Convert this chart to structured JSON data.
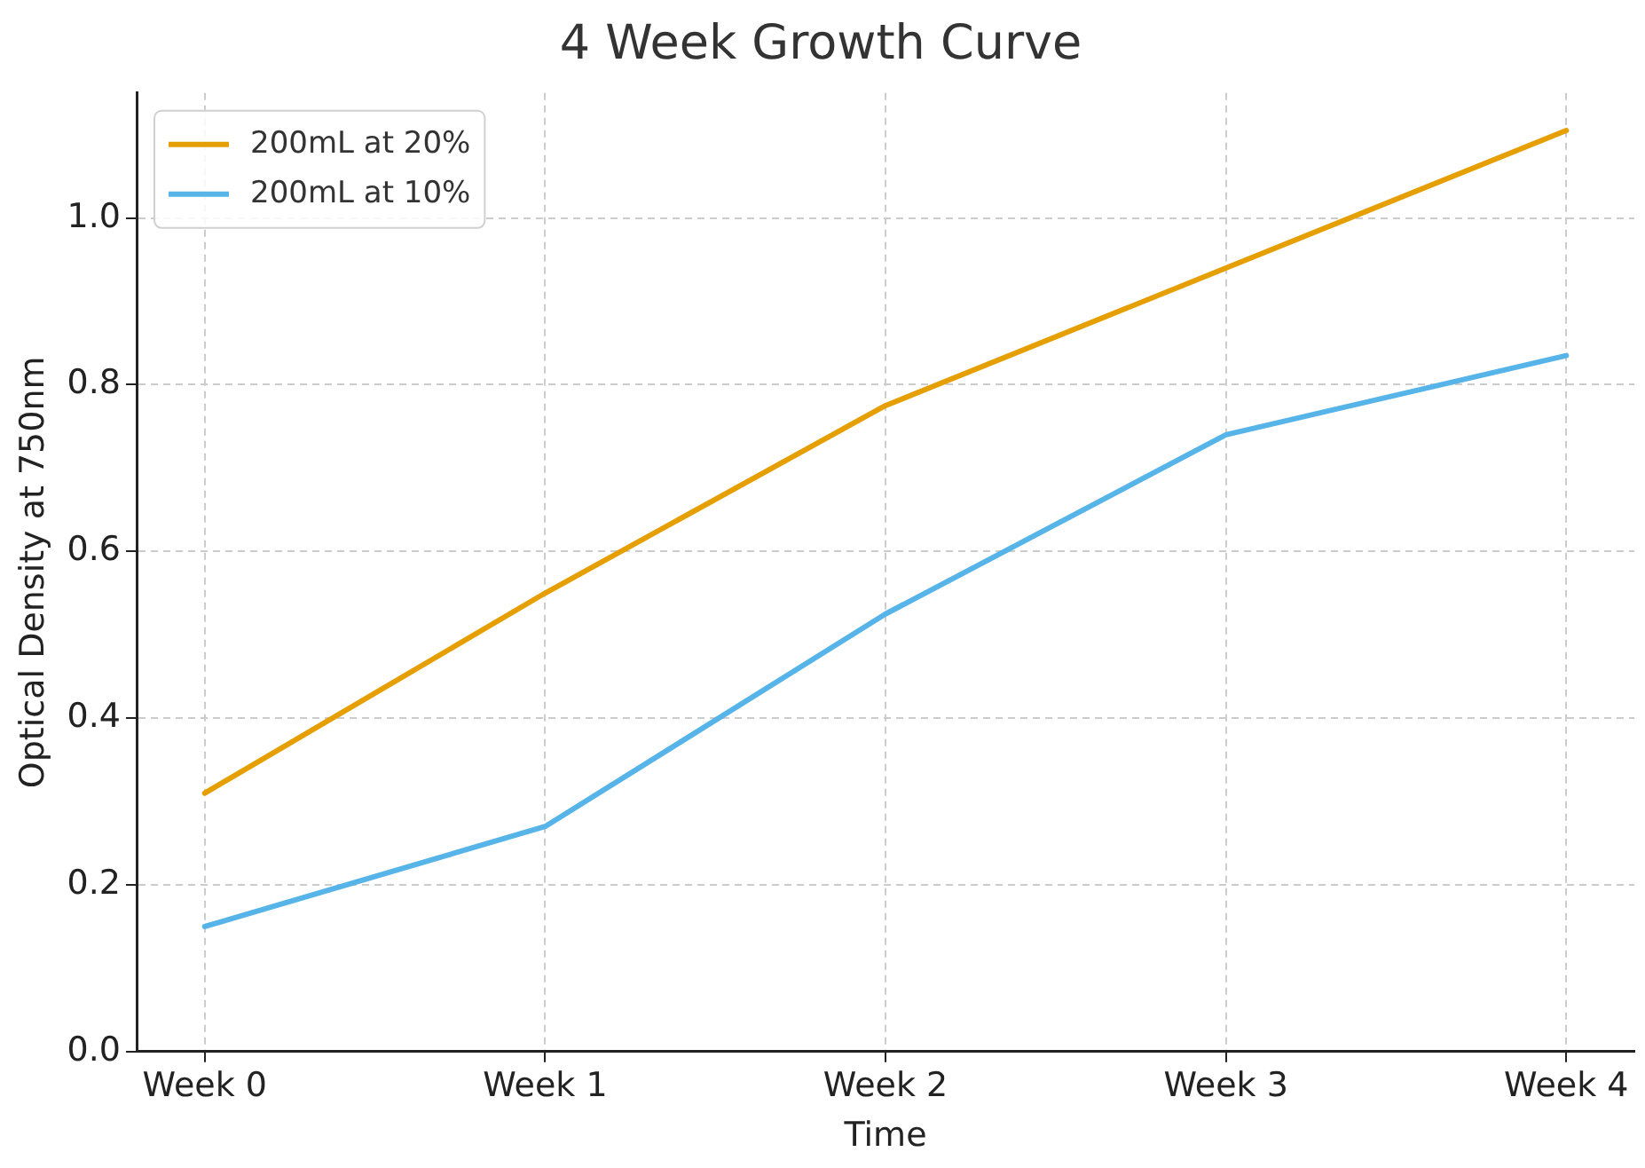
{
  "chart_data": {
    "type": "line",
    "title": "4 Week Growth Curve",
    "xlabel": "Time",
    "ylabel": "Optical Density at 750nm",
    "categories": [
      "Week 0",
      "Week 1",
      "Week 2",
      "Week 3",
      "Week 4"
    ],
    "series": [
      {
        "name": "200mL at 20%",
        "color": "#e69f00",
        "values": [
          0.31,
          0.55,
          0.775,
          0.94,
          1.105
        ]
      },
      {
        "name": "200mL at 10%",
        "color": "#56b4e9",
        "values": [
          0.15,
          0.27,
          0.525,
          0.74,
          0.835
        ]
      }
    ],
    "ylim": [
      0,
      1.15
    ],
    "yticks": [
      {
        "value": 0,
        "label": "0.0"
      },
      0.2,
      0.4,
      0.6,
      0.8,
      {
        "value": 1,
        "label": "1.0"
      }
    ],
    "grid": true,
    "legend": "top left",
    "marker": "none",
    "line_style": "solid"
  }
}
